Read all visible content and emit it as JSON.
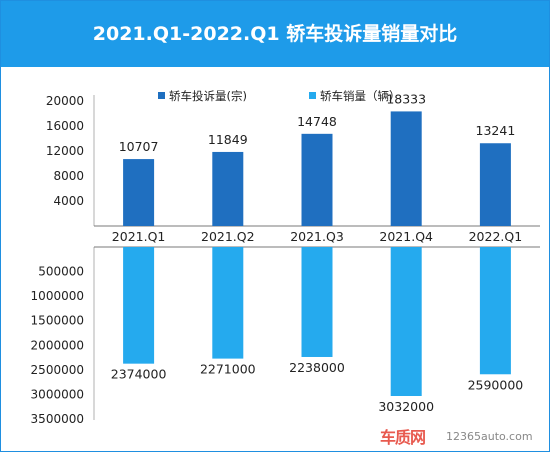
{
  "title": "2021.Q1-2022.Q1 轿车投诉量销量对比",
  "chart_data": {
    "type": "bar",
    "categories": [
      "2021.Q1",
      "2021.Q2",
      "2021.Q3",
      "2021.Q4",
      "2022.Q1"
    ],
    "series": [
      {
        "name": "轿车投诉量(宗)",
        "values": [
          10707,
          11849,
          14748,
          18333,
          13241
        ],
        "color": "#1f6fc0"
      },
      {
        "name": "轿车销量（辆）",
        "values": [
          2374000,
          2271000,
          2238000,
          3032000,
          2590000
        ],
        "color": "#25aaee"
      }
    ],
    "upper_axis": {
      "ticks": [
        "20000",
        "16000",
        "12000",
        "8000",
        "4000"
      ],
      "tick_values": [
        20000,
        16000,
        12000,
        8000,
        4000
      ],
      "range": [
        0,
        20000
      ]
    },
    "lower_axis": {
      "ticks": [
        "500000",
        "1000000",
        "1500000",
        "2000000",
        "2500000",
        "3000000",
        "3500000"
      ],
      "tick_values": [
        500000,
        1000000,
        1500000,
        2000000,
        2500000,
        3000000,
        3500000
      ],
      "range": [
        0,
        3500000
      ],
      "inverted": true
    },
    "legend_position": "top"
  },
  "watermark": {
    "brand": "车质网",
    "site": "12365auto.com"
  }
}
